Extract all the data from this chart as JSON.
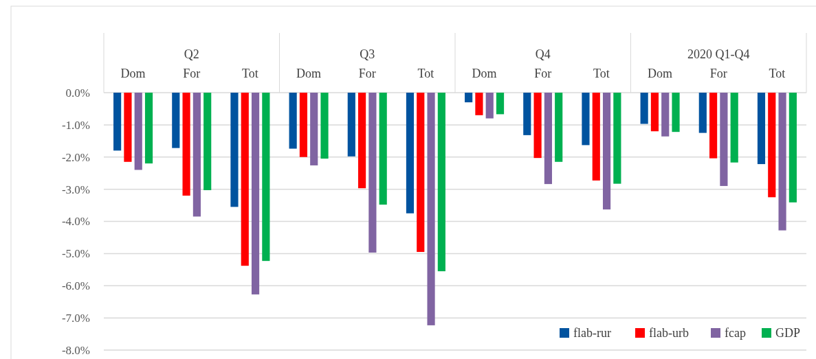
{
  "chart_data": {
    "type": "bar",
    "categories": [
      "Dom",
      "For",
      "Tot",
      "Dom",
      "For",
      "Tot",
      "Dom",
      "For",
      "Tot",
      "Dom",
      "For",
      "Tot"
    ],
    "annotations": [
      "Q2",
      "Q3",
      "Q4",
      "2020 Q1-Q4"
    ],
    "series": [
      {
        "name": "flab-rur",
        "color": "#00539f",
        "values": [
          -1.8,
          -1.72,
          -3.55,
          -1.74,
          -1.98,
          -3.75,
          -0.3,
          -1.32,
          -1.63,
          -0.97,
          -1.25,
          -2.22
        ]
      },
      {
        "name": "flab-urb",
        "color": "#ff0000",
        "values": [
          -2.15,
          -3.2,
          -5.38,
          -2.0,
          -2.97,
          -4.95,
          -0.7,
          -2.03,
          -2.73,
          -1.2,
          -2.04,
          -3.25
        ]
      },
      {
        "name": "fcap",
        "color": "#8064a2",
        "values": [
          -2.4,
          -3.85,
          -6.27,
          -2.26,
          -4.97,
          -7.23,
          -0.8,
          -2.84,
          -3.63,
          -1.36,
          -2.9,
          -4.28
        ]
      },
      {
        "name": "GDP",
        "color": "#00b050",
        "values": [
          -2.2,
          -3.03,
          -5.23,
          -2.05,
          -3.48,
          -5.55,
          -0.67,
          -2.15,
          -2.83,
          -1.22,
          -2.17,
          -3.41
        ]
      }
    ],
    "ylim": [
      -8,
      0
    ],
    "yticks": [
      {
        "value": 0,
        "label": "0.0%"
      },
      {
        "value": -1,
        "label": "-1.0%"
      },
      {
        "value": -2,
        "label": "-2.0%"
      },
      {
        "value": -3,
        "label": "-3.0%"
      },
      {
        "value": -4,
        "label": "-4.0%"
      },
      {
        "value": -5,
        "label": "-5.0%"
      },
      {
        "value": -6,
        "label": "-6.0%"
      },
      {
        "value": -7,
        "label": "-7.0%"
      },
      {
        "value": -8,
        "label": "-8.0%"
      }
    ],
    "grid": "y",
    "legend": "bottom right"
  }
}
